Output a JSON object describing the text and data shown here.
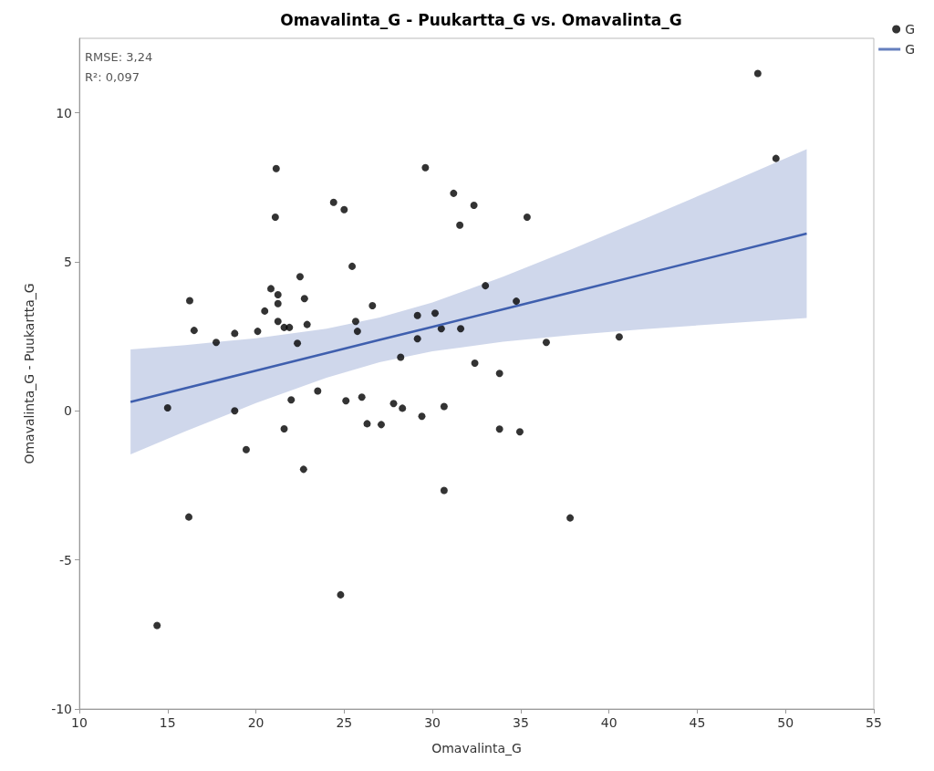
{
  "chart_data": {
    "type": "scatter",
    "title": "Omavalinta_G - Puukartta_G vs. Omavalinta_G",
    "xlabel": "Omavalinta_G",
    "ylabel": "Omavalinta_G - Puukartta_G",
    "annotations": [
      "RMSE: 3,24",
      "R²: 0,097"
    ],
    "xlim": [
      10,
      55
    ],
    "xticks": [
      10,
      15,
      20,
      25,
      30,
      35,
      40,
      45,
      50,
      55
    ],
    "ylim": [
      -10,
      12.5
    ],
    "yticks": [
      -10,
      -5,
      0,
      5,
      10
    ],
    "grid": false,
    "legend": "top right",
    "marker": "circle",
    "series": [
      {
        "name": "G",
        "color": "#000000",
        "x": [
          14.4,
          15.0,
          16.25,
          16.2,
          16.5,
          17.75,
          18.8,
          18.8,
          19.45,
          20.1,
          20.5,
          20.85,
          21.1,
          21.15,
          21.25,
          21.25,
          21.25,
          21.6,
          21.6,
          21.9,
          22.0,
          22.35,
          22.5,
          22.7,
          22.75,
          22.9,
          23.5,
          24.4,
          24.8,
          25.0,
          25.1,
          25.45,
          25.65,
          25.75,
          26.0,
          26.3,
          26.6,
          27.1,
          27.8,
          28.2,
          28.3,
          29.15,
          29.15,
          29.4,
          29.6,
          30.15,
          30.5,
          30.66,
          30.66,
          31.2,
          31.55,
          31.6,
          32.35,
          32.4,
          33.0,
          33.8,
          33.8,
          34.75,
          34.95,
          35.36,
          36.45,
          37.8,
          40.58,
          48.43,
          49.46
        ],
        "values": [
          -7.2,
          0.1,
          3.7,
          -3.56,
          2.7,
          2.3,
          2.6,
          0.0,
          -1.3,
          2.67,
          3.35,
          4.1,
          6.5,
          8.13,
          3.9,
          3.6,
          3.0,
          2.8,
          -0.6,
          2.8,
          0.37,
          2.27,
          4.5,
          -1.96,
          3.77,
          2.9,
          0.67,
          7.0,
          -6.17,
          6.75,
          0.34,
          4.85,
          3.0,
          2.67,
          0.46,
          -0.43,
          3.53,
          -0.46,
          0.25,
          1.8,
          0.09,
          3.2,
          2.42,
          -0.18,
          8.16,
          3.28,
          2.76,
          0.15,
          -2.67,
          7.3,
          6.23,
          2.76,
          6.9,
          1.6,
          4.2,
          1.26,
          -0.61,
          3.68,
          -0.7,
          6.5,
          2.3,
          -3.59,
          2.48,
          11.32,
          8.47
        ]
      },
      {
        "name": "G",
        "type": "line",
        "color": "#3f5fae",
        "marker": "none",
        "x": [
          12.9,
          16,
          20,
          24,
          27,
          30,
          34,
          38,
          42,
          46,
          51.2
        ],
        "values": [
          0.3,
          0.76,
          1.35,
          1.94,
          2.38,
          2.82,
          3.41,
          4.0,
          4.59,
          5.18,
          5.95
        ],
        "lower": [
          -1.46,
          -0.69,
          0.26,
          1.11,
          1.63,
          2.0,
          2.32,
          2.55,
          2.74,
          2.91,
          3.12
        ],
        "upper": [
          2.06,
          2.21,
          2.44,
          2.76,
          3.13,
          3.64,
          4.5,
          5.45,
          6.44,
          7.45,
          8.78
        ]
      }
    ]
  }
}
